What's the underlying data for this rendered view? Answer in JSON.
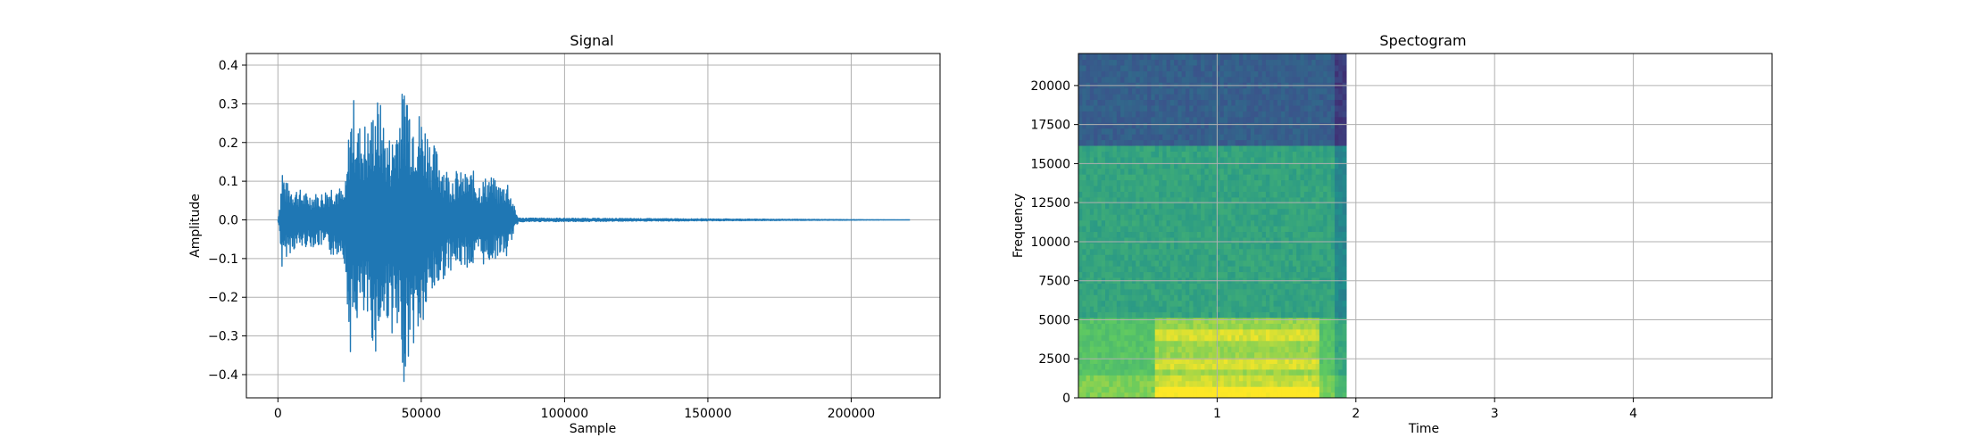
{
  "chart_data": [
    {
      "type": "line",
      "title": "Signal",
      "xlabel": "Sample",
      "ylabel": "Amplitude",
      "xlim": [
        -11000,
        231000
      ],
      "ylim": [
        -0.46,
        0.43
      ],
      "grid": true,
      "x_ticks": [
        0,
        50000,
        100000,
        150000,
        200000
      ],
      "x_tick_labels": [
        "0",
        "50000",
        "100000",
        "150000",
        "200000"
      ],
      "y_ticks": [
        -0.4,
        -0.3,
        -0.2,
        -0.1,
        0.0,
        0.1,
        0.2,
        0.3,
        0.4
      ],
      "y_tick_labels": [
        "−0.4",
        "−0.3",
        "−0.2",
        "−0.1",
        "0.0",
        "0.1",
        "0.2",
        "0.3",
        "0.4"
      ],
      "series": [
        {
          "color": "#1f77b4",
          "x_range": [
            0,
            220500
          ],
          "envelope_x": [
            0,
            800,
            1500,
            2500,
            5000,
            10000,
            15000,
            18000,
            20000,
            22000,
            23000,
            24000,
            25000,
            27000,
            28000,
            30000,
            32000,
            34000,
            36000,
            38000,
            40000,
            42000,
            44000,
            45000,
            46000,
            48000,
            50000,
            52000,
            54000,
            56000,
            58000,
            60000,
            62000,
            65000,
            68000,
            70000,
            72000,
            74000,
            76000,
            78000,
            80000,
            81000,
            82000,
            83000,
            84000,
            220500
          ],
          "envelope_upper": [
            0.0,
            0.06,
            0.15,
            0.1,
            0.09,
            0.07,
            0.07,
            0.09,
            0.1,
            0.08,
            0.07,
            0.12,
            0.28,
            0.33,
            0.25,
            0.26,
            0.24,
            0.33,
            0.3,
            0.22,
            0.22,
            0.3,
            0.35,
            0.4,
            0.32,
            0.3,
            0.28,
            0.25,
            0.2,
            0.18,
            0.15,
            0.12,
            0.13,
            0.12,
            0.13,
            0.1,
            0.11,
            0.12,
            0.1,
            0.09,
            0.11,
            0.08,
            0.05,
            0.02,
            0.005,
            0.0
          ],
          "envelope_lower": [
            0.0,
            -0.05,
            -0.15,
            -0.1,
            -0.08,
            -0.07,
            -0.07,
            -0.09,
            -0.1,
            -0.08,
            -0.1,
            -0.22,
            -0.35,
            -0.3,
            -0.25,
            -0.28,
            -0.29,
            -0.35,
            -0.3,
            -0.26,
            -0.3,
            -0.35,
            -0.42,
            -0.38,
            -0.35,
            -0.32,
            -0.3,
            -0.25,
            -0.2,
            -0.18,
            -0.15,
            -0.13,
            -0.13,
            -0.12,
            -0.13,
            -0.1,
            -0.12,
            -0.11,
            -0.1,
            -0.09,
            -0.1,
            -0.07,
            -0.04,
            -0.02,
            -0.005,
            0.0
          ]
        }
      ]
    },
    {
      "type": "heatmap",
      "title": "Spectogram",
      "xlabel": "Time",
      "ylabel": "Frequency",
      "xlim": [
        0.0,
        5.0
      ],
      "ylim": [
        0,
        22050
      ],
      "grid": true,
      "x_ticks": [
        1,
        2,
        3,
        4
      ],
      "x_tick_labels": [
        "1",
        "2",
        "3",
        "4"
      ],
      "y_ticks": [
        0,
        2500,
        5000,
        7500,
        10000,
        12500,
        15000,
        17500,
        20000
      ],
      "y_tick_labels": [
        "0",
        "2500",
        "5000",
        "7500",
        "10000",
        "12500",
        "15000",
        "17500",
        "20000"
      ],
      "data_x_range": [
        0.0,
        1.93
      ],
      "colormap": "viridis",
      "bands": [
        {
          "freq_range": [
            16100,
            22050
          ],
          "level": 0.3
        },
        {
          "freq_range": [
            5000,
            16100
          ],
          "level": 0.58
        },
        {
          "freq_range": [
            0,
            5000
          ],
          "level": 0.72
        }
      ]
    }
  ]
}
